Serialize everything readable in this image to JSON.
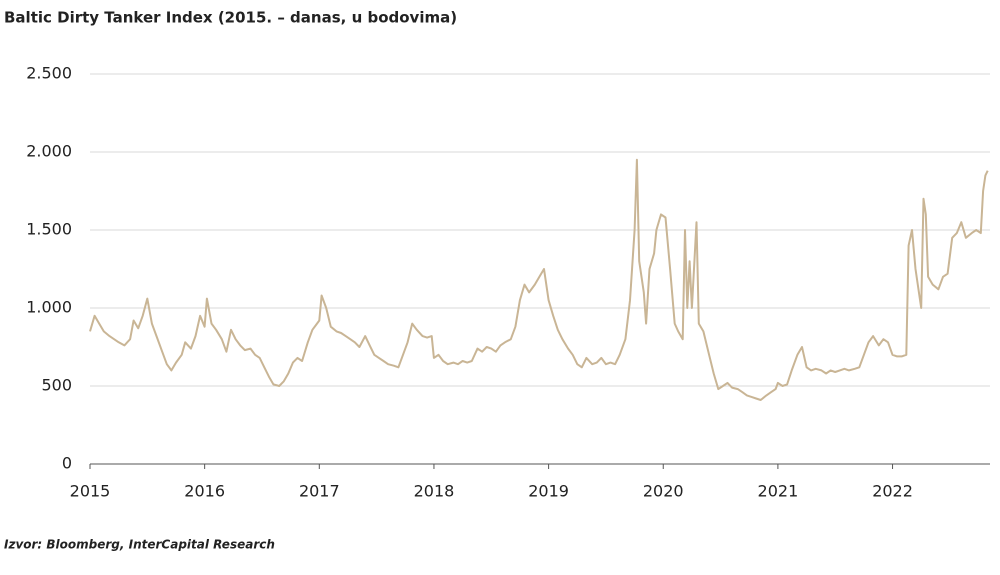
{
  "chart_data": {
    "type": "line",
    "title": "Baltic Dirty Tanker Index (2015. – danas, u bodovima)",
    "source": "Izvor: Bloomberg, InterCapital Research",
    "x": [
      2015.0,
      2015.04,
      2015.08,
      2015.12,
      2015.17,
      2015.21,
      2015.25,
      2015.3,
      2015.35,
      2015.38,
      2015.42,
      2015.46,
      2015.5,
      2015.54,
      2015.58,
      2015.63,
      2015.67,
      2015.71,
      2015.75,
      2015.8,
      2015.83,
      2015.88,
      2015.92,
      2015.96,
      2016.0,
      2016.02,
      2016.06,
      2016.1,
      2016.15,
      2016.19,
      2016.23,
      2016.27,
      2016.31,
      2016.35,
      2016.4,
      2016.44,
      2016.48,
      2016.52,
      2016.56,
      2016.6,
      2016.65,
      2016.69,
      2016.73,
      2016.77,
      2016.81,
      2016.85,
      2016.9,
      2016.94,
      2016.98,
      2017.0,
      2017.02,
      2017.06,
      2017.1,
      2017.15,
      2017.19,
      2017.23,
      2017.27,
      2017.31,
      2017.35,
      2017.4,
      2017.44,
      2017.48,
      2017.52,
      2017.56,
      2017.6,
      2017.65,
      2017.69,
      2017.73,
      2017.77,
      2017.81,
      2017.85,
      2017.9,
      2017.94,
      2017.98,
      2018.0,
      2018.04,
      2018.08,
      2018.12,
      2018.17,
      2018.21,
      2018.25,
      2018.29,
      2018.33,
      2018.38,
      2018.42,
      2018.46,
      2018.5,
      2018.54,
      2018.58,
      2018.62,
      2018.67,
      2018.71,
      2018.75,
      2018.79,
      2018.83,
      2018.88,
      2018.92,
      2018.96,
      2019.0,
      2019.04,
      2019.08,
      2019.12,
      2019.17,
      2019.21,
      2019.25,
      2019.29,
      2019.33,
      2019.38,
      2019.42,
      2019.46,
      2019.5,
      2019.54,
      2019.58,
      2019.62,
      2019.67,
      2019.71,
      2019.75,
      2019.77,
      2019.79,
      2019.83,
      2019.85,
      2019.88,
      2019.92,
      2019.94,
      2019.98,
      2020.02,
      2020.06,
      2020.1,
      2020.13,
      2020.17,
      2020.19,
      2020.21,
      2020.23,
      2020.25,
      2020.29,
      2020.31,
      2020.35,
      2020.4,
      2020.44,
      2020.48,
      2020.52,
      2020.56,
      2020.6,
      2020.65,
      2020.69,
      2020.73,
      2020.77,
      2020.81,
      2020.85,
      2020.9,
      2020.94,
      2020.98,
      2021.0,
      2021.04,
      2021.08,
      2021.12,
      2021.17,
      2021.21,
      2021.25,
      2021.29,
      2021.33,
      2021.38,
      2021.42,
      2021.46,
      2021.5,
      2021.54,
      2021.58,
      2021.62,
      2021.67,
      2021.71,
      2021.75,
      2021.79,
      2021.83,
      2021.88,
      2021.92,
      2021.96,
      2022.0,
      2022.04,
      2022.08,
      2022.12,
      2022.14,
      2022.17,
      2022.2,
      2022.25,
      2022.27,
      2022.29,
      2022.31,
      2022.35,
      2022.4,
      2022.44,
      2022.48,
      2022.52,
      2022.56,
      2022.6,
      2022.64,
      2022.69,
      2022.73,
      2022.77,
      2022.79,
      2022.81,
      2022.83
    ],
    "series": [
      {
        "color": "#c9b595",
        "values": [
          850,
          950,
          900,
          850,
          820,
          800,
          780,
          760,
          800,
          920,
          870,
          950,
          1060,
          900,
          820,
          720,
          640,
          600,
          650,
          700,
          780,
          740,
          820,
          950,
          880,
          1060,
          900,
          860,
          800,
          720,
          860,
          800,
          760,
          730,
          740,
          700,
          680,
          620,
          560,
          510,
          500,
          530,
          580,
          650,
          680,
          660,
          780,
          860,
          900,
          920,
          1080,
          1000,
          880,
          850,
          840,
          820,
          800,
          780,
          750,
          820,
          760,
          700,
          680,
          660,
          640,
          630,
          620,
          700,
          780,
          900,
          860,
          820,
          810,
          820,
          680,
          700,
          660,
          640,
          650,
          640,
          660,
          650,
          660,
          740,
          720,
          750,
          740,
          720,
          760,
          780,
          800,
          880,
          1050,
          1150,
          1100,
          1150,
          1200,
          1250,
          1050,
          950,
          860,
          800,
          740,
          700,
          640,
          620,
          680,
          640,
          650,
          680,
          640,
          650,
          640,
          700,
          800,
          1050,
          1500,
          1950,
          1300,
          1100,
          900,
          1250,
          1350,
          1500,
          1600,
          1580,
          1250,
          900,
          850,
          800,
          1500,
          1000,
          1300,
          1000,
          1550,
          900,
          850,
          700,
          580,
          480,
          500,
          520,
          490,
          480,
          460,
          440,
          430,
          420,
          410,
          440,
          460,
          480,
          520,
          500,
          510,
          600,
          700,
          750,
          620,
          600,
          610,
          600,
          580,
          600,
          590,
          600,
          610,
          600,
          610,
          620,
          700,
          780,
          820,
          760,
          800,
          780,
          700,
          690,
          690,
          700,
          1400,
          1500,
          1250,
          1000,
          1700,
          1600,
          1200,
          1150,
          1120,
          1200,
          1220,
          1450,
          1480,
          1550,
          1450,
          1480,
          1500,
          1480,
          1750,
          1850,
          1880
        ]
      }
    ],
    "xlim": [
      2015,
      2022.85
    ],
    "xticks": [
      2015,
      2016,
      2017,
      2018,
      2019,
      2020,
      2021,
      2022
    ],
    "ylim": [
      0,
      2500
    ],
    "yticks": [
      0,
      500,
      {
        "value": 1000,
        "label": "1.000"
      },
      {
        "value": 1500,
        "label": "1.500"
      },
      {
        "value": 2000,
        "label": "2.000"
      },
      {
        "value": 2500,
        "label": "2.500"
      }
    ],
    "grid": true
  }
}
